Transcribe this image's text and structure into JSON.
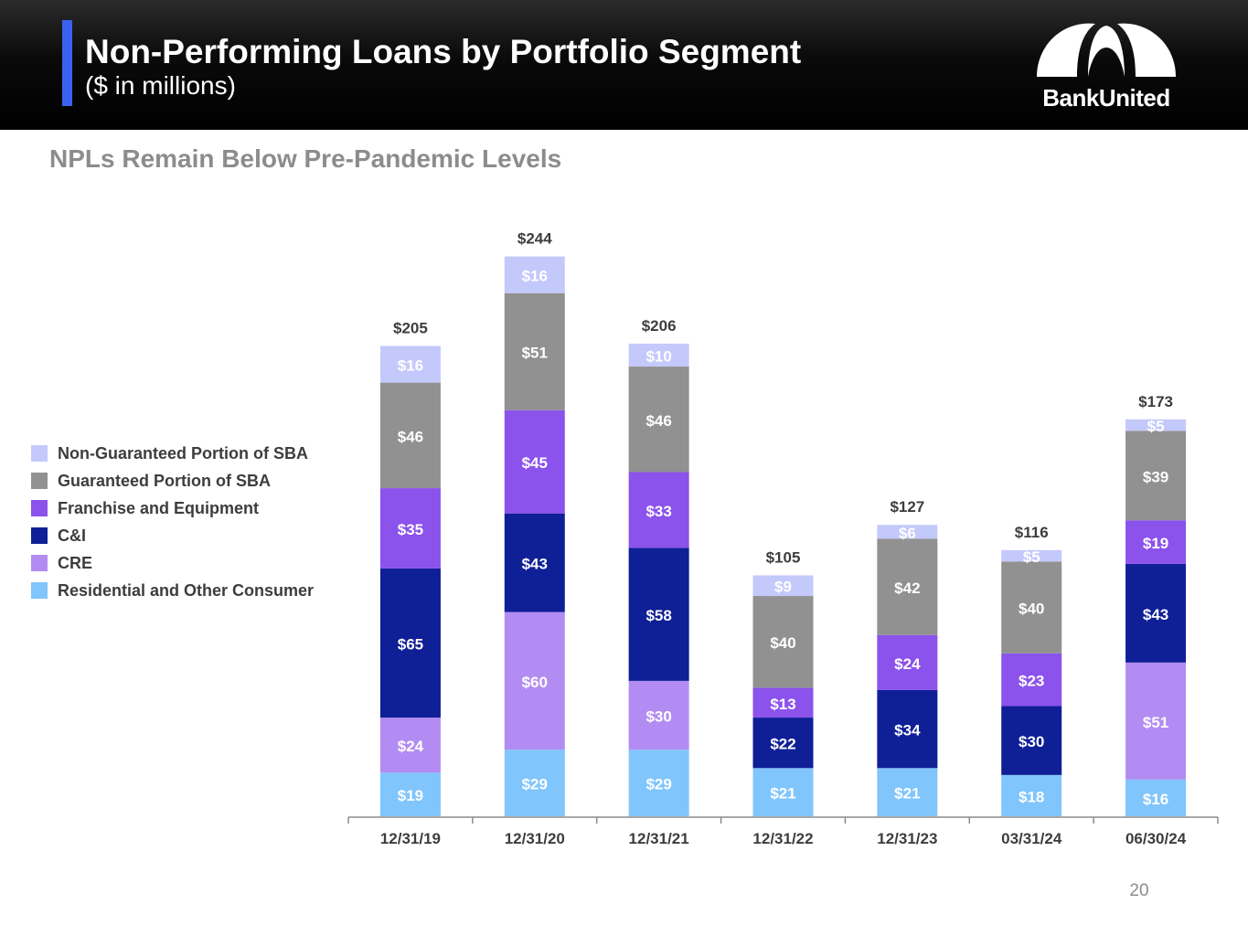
{
  "header": {
    "title": "Non-Performing Loans by Portfolio Segment",
    "subtitle": "($ in millions)",
    "logo_text": "BankUnited"
  },
  "section_heading": "NPLs Remain Below Pre-Pandemic Levels",
  "page_number": "20",
  "chart_data": {
    "type": "bar",
    "stacked": true,
    "title": "NPLs Remain Below Pre-Pandemic Levels",
    "xlabel": "",
    "ylabel": "$ in millions",
    "ylim": [
      0,
      250
    ],
    "grid": false,
    "legend_position": "left",
    "categories": [
      "12/31/19",
      "12/31/20",
      "12/31/21",
      "12/31/22",
      "12/31/23",
      "03/31/24",
      "06/30/24"
    ],
    "totals": [
      205,
      244,
      206,
      105,
      127,
      116,
      173
    ],
    "total_labels": [
      "$205",
      "$244",
      "$206",
      "$105",
      "$127",
      "$116",
      "$173"
    ],
    "series": [
      {
        "name": "Residential and Other Consumer",
        "color": "#80c5fc",
        "values": [
          19,
          29,
          29,
          21,
          21,
          18,
          16
        ],
        "labels": [
          "$19",
          "$29",
          "$29",
          "$21",
          "$21",
          "$18",
          "$16"
        ]
      },
      {
        "name": "CRE",
        "color": "#b28cf2",
        "values": [
          24,
          60,
          30,
          0,
          0,
          0,
          51
        ],
        "labels": [
          "$24",
          "$60",
          "$30",
          "",
          "",
          "",
          "$51"
        ]
      },
      {
        "name": "C&I",
        "color": "#0f1f96",
        "values": [
          65,
          43,
          58,
          22,
          34,
          30,
          43
        ],
        "labels": [
          "$65",
          "$43",
          "$58",
          "$22",
          "$34",
          "$30",
          "$43"
        ]
      },
      {
        "name": "Franchise and Equipment",
        "color": "#8b52ec",
        "values": [
          35,
          45,
          33,
          13,
          24,
          23,
          19
        ],
        "labels": [
          "$35",
          "$45",
          "$33",
          "$13",
          "$24",
          "$23",
          "$19"
        ]
      },
      {
        "name": "Guaranteed Portion of SBA",
        "color": "#919191",
        "values": [
          46,
          51,
          46,
          40,
          42,
          40,
          39
        ],
        "labels": [
          "$46",
          "$51",
          "$46",
          "$40",
          "$42",
          "$40",
          "$39"
        ]
      },
      {
        "name": "Non-Guaranteed Portion of SBA",
        "color": "#c4c9fb",
        "values": [
          16,
          16,
          10,
          9,
          6,
          5,
          5
        ],
        "labels": [
          "$16",
          "$16",
          "$10",
          "$9",
          "$6",
          "$5",
          "$5"
        ]
      }
    ],
    "legend_order": [
      {
        "name": "Non-Guaranteed Portion of SBA",
        "color": "#c4c9fb"
      },
      {
        "name": "Guaranteed Portion of SBA",
        "color": "#919191"
      },
      {
        "name": "Franchise and Equipment",
        "color": "#8b52ec"
      },
      {
        "name": "C&I",
        "color": "#0f1f96"
      },
      {
        "name": "CRE",
        "color": "#b28cf2"
      },
      {
        "name": "Residential and Other Consumer",
        "color": "#80c5fc"
      }
    ]
  }
}
